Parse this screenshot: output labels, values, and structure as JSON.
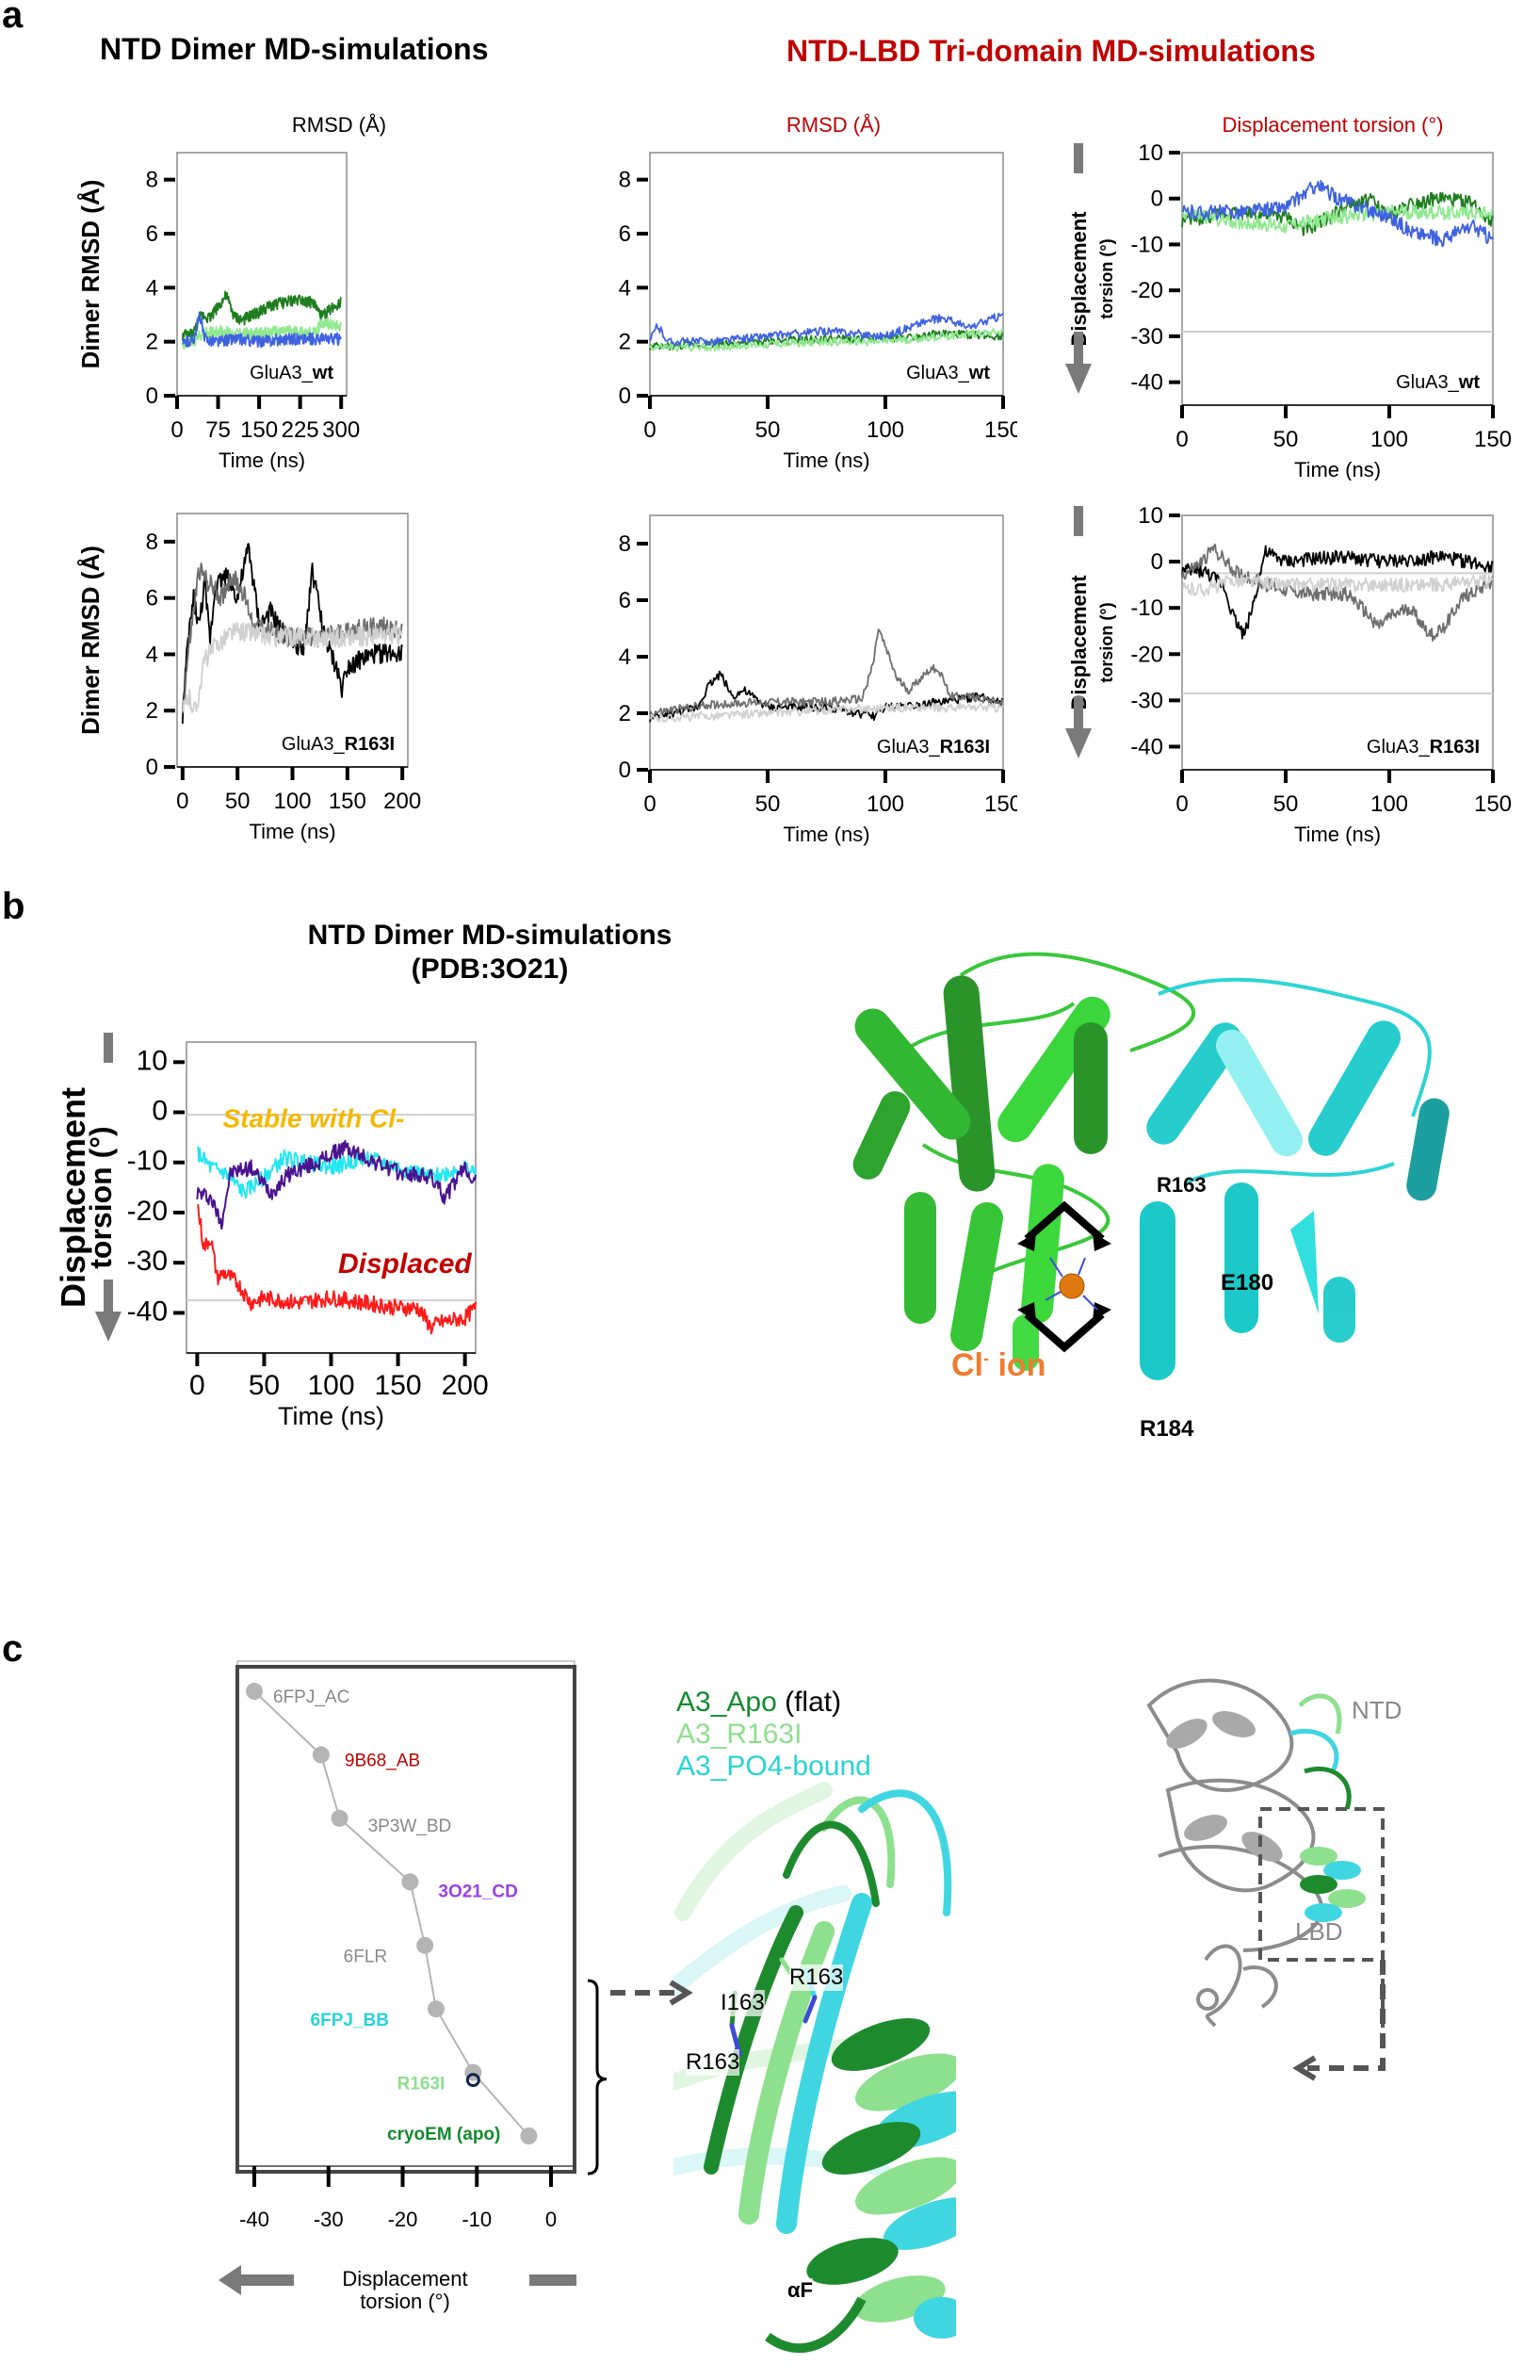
{
  "panel_a": {
    "letter": "a",
    "title_left": "NTD Dimer MD-simulations",
    "title_right": "NTD-LBD Tri-domain MD-simulations",
    "title_right_color": "#c00000",
    "col_titles": [
      "RMSD (Å)",
      "RMSD (Å)",
      "Displacement torsion (°)"
    ],
    "col_title_colors": [
      "#000000",
      "#c00000",
      "#c00000"
    ]
  },
  "panel_b": {
    "letter": "b",
    "title_line1": "NTD Dimer MD-simulations",
    "title_line2": "(PDB:3O21)",
    "stable_label": "Stable with Cl-",
    "displaced_label": "Displaced",
    "structure_labels": {
      "r163": "R163",
      "e180": "E180",
      "r184": "R184",
      "cl_ion": "Cl",
      "cl_sup": "-",
      "cl_suffix": " ion"
    }
  },
  "panel_c": {
    "letter": "c",
    "legend": [
      {
        "label": "A3_Apo",
        "suffix": " (flat)",
        "color": "#138a2e"
      },
      {
        "label": "A3_R163I",
        "suffix": "",
        "color": "#8de08d"
      },
      {
        "label": "A3_PO4-bound",
        "suffix": "",
        "color": "#27d3d3"
      }
    ],
    "structure_labels": {
      "i163": "I163",
      "r163_a": "R163",
      "r163_b": "R163",
      "alpha_f": "αF",
      "ntd": "NTD",
      "lbd": "LBD"
    },
    "axis_label_line1": "Displacement",
    "axis_label_line2": "torsion (°)"
  },
  "chart_data": [
    {
      "id": "a1",
      "type": "line",
      "title": "RMSD (Å)",
      "annotation": "GluA3_wt",
      "xlabel": "Time (ns)",
      "ylabel": "Dimer RMSD (Å)",
      "xlim": [
        0,
        310
      ],
      "ylim": [
        0,
        9
      ],
      "xticks": [
        0,
        75,
        150,
        225,
        300
      ],
      "yticks": [
        0,
        2,
        4,
        6,
        8
      ],
      "series": [
        {
          "name": "run1",
          "color": "#1e7d1e",
          "x": [
            10,
            30,
            45,
            60,
            75,
            90,
            105,
            120,
            150,
            180,
            210,
            225,
            250,
            265,
            280,
            300
          ],
          "y": [
            2.2,
            2.3,
            3.0,
            2.9,
            3.3,
            3.7,
            2.9,
            2.8,
            3.1,
            3.4,
            3.5,
            3.6,
            3.4,
            2.9,
            3.2,
            3.5
          ]
        },
        {
          "name": "run2",
          "color": "#8fe98f",
          "x": [
            10,
            30,
            45,
            75,
            105,
            150,
            200,
            250,
            265,
            300
          ],
          "y": [
            1.9,
            2.0,
            2.3,
            2.4,
            2.3,
            2.3,
            2.4,
            2.3,
            2.7,
            2.6
          ]
        },
        {
          "name": "run3",
          "color": "#3f62e0",
          "x": [
            10,
            30,
            42,
            50,
            75,
            105,
            150,
            200,
            250,
            300
          ],
          "y": [
            1.9,
            2.1,
            3.0,
            2.1,
            2.0,
            2.1,
            2.0,
            2.1,
            2.1,
            2.1
          ]
        }
      ]
    },
    {
      "id": "a2",
      "type": "line",
      "title": "RMSD (Å)",
      "annotation": "GluA3_wt",
      "xlabel": "Time (ns)",
      "ylabel": "",
      "xlim": [
        0,
        150
      ],
      "ylim": [
        0,
        9
      ],
      "xticks": [
        0,
        50,
        100,
        150
      ],
      "yticks": [
        0,
        2,
        4,
        6,
        8
      ],
      "series": [
        {
          "name": "run1",
          "color": "#1e7d1e",
          "x": [
            0,
            25,
            50,
            75,
            100,
            125,
            150
          ],
          "y": [
            1.8,
            1.9,
            2.0,
            2.1,
            2.1,
            2.3,
            2.2
          ]
        },
        {
          "name": "run2",
          "color": "#8fe98f",
          "x": [
            0,
            25,
            50,
            75,
            100,
            125,
            150
          ],
          "y": [
            1.8,
            1.8,
            1.9,
            2.0,
            2.0,
            2.2,
            2.4
          ]
        },
        {
          "name": "run3",
          "color": "#3f62e0",
          "x": [
            0,
            3,
            8,
            25,
            50,
            75,
            100,
            115,
            125,
            135,
            150
          ],
          "y": [
            2.0,
            2.6,
            2.0,
            2.0,
            2.2,
            2.4,
            2.2,
            2.7,
            2.9,
            2.5,
            3.0
          ]
        }
      ]
    },
    {
      "id": "a3",
      "type": "line",
      "title": "Displacement torsion (°)",
      "annotation": "GluA3_wt",
      "xlabel": "Time (ns)",
      "ylabel": "Displacement torsion (°)",
      "xlim": [
        0,
        150
      ],
      "ylim": [
        -45,
        10
      ],
      "xticks": [
        0,
        50,
        100,
        150
      ],
      "yticks": [
        -40,
        -30,
        -20,
        -10,
        0,
        10
      ],
      "reference_line": -29,
      "series": [
        {
          "name": "run1",
          "color": "#1e7d1e",
          "x": [
            0,
            25,
            50,
            60,
            75,
            90,
            100,
            110,
            125,
            140,
            150
          ],
          "y": [
            -5,
            -3,
            -4,
            -7,
            -3,
            0,
            -4,
            -1,
            0,
            -1,
            -5
          ]
        },
        {
          "name": "run2",
          "color": "#8fe98f",
          "x": [
            0,
            25,
            50,
            75,
            100,
            125,
            150
          ],
          "y": [
            -3,
            -5,
            -6,
            -4,
            -3,
            -3,
            -3
          ]
        },
        {
          "name": "run3",
          "color": "#3f62e0",
          "x": [
            0,
            25,
            50,
            65,
            75,
            100,
            110,
            125,
            140,
            150
          ],
          "y": [
            -3,
            -3,
            -2,
            3,
            0,
            -4,
            -7,
            -9,
            -6,
            -9
          ]
        }
      ]
    },
    {
      "id": "a4",
      "type": "line",
      "title": "",
      "annotation": "GluA3_R163I",
      "xlabel": "Time (ns)",
      "ylabel": "Dimer RMSD (Å)",
      "xlim": [
        -5,
        205
      ],
      "ylim": [
        0,
        9
      ],
      "xticks": [
        0,
        50,
        100,
        150,
        200
      ],
      "yticks": [
        0,
        2,
        4,
        6,
        8
      ],
      "series": [
        {
          "name": "run1",
          "color": "#000000",
          "x": [
            0,
            5,
            10,
            15,
            20,
            25,
            30,
            40,
            50,
            60,
            70,
            80,
            90,
            100,
            110,
            118,
            125,
            130,
            140,
            145,
            150,
            175,
            200
          ],
          "y": [
            1.8,
            4.5,
            6.0,
            5.0,
            6.5,
            4.5,
            6.5,
            6.8,
            6.0,
            7.8,
            5.0,
            5.5,
            4.8,
            4.5,
            4.0,
            7.0,
            5.5,
            4.5,
            3.5,
            2.8,
            3.6,
            4.0,
            4.1
          ]
        },
        {
          "name": "run2",
          "color": "#6e6e6e",
          "x": [
            0,
            5,
            15,
            25,
            35,
            45,
            55,
            65,
            80,
            100,
            125,
            150,
            175,
            200
          ],
          "y": [
            2.0,
            4.0,
            7.0,
            6.5,
            6.0,
            6.8,
            6.2,
            5.0,
            4.8,
            4.6,
            4.6,
            4.8,
            5.0,
            4.9
          ]
        },
        {
          "name": "run3",
          "color": "#d0d0d0",
          "x": [
            0,
            5,
            12,
            20,
            30,
            45,
            60,
            80,
            100,
            150,
            200
          ],
          "y": [
            1.9,
            2.5,
            2.0,
            3.8,
            4.3,
            4.8,
            4.8,
            4.6,
            4.6,
            4.6,
            4.7
          ]
        }
      ]
    },
    {
      "id": "a5",
      "type": "line",
      "title": "",
      "annotation": "GluA3_R163I",
      "xlabel": "Time (ns)",
      "ylabel": "",
      "xlim": [
        0,
        150
      ],
      "ylim": [
        0,
        9
      ],
      "xticks": [
        0,
        50,
        100,
        150
      ],
      "yticks": [
        0,
        2,
        4,
        6,
        8
      ],
      "series": [
        {
          "name": "run1",
          "color": "#000000",
          "x": [
            0,
            20,
            25,
            30,
            35,
            40,
            50,
            75,
            95,
            100,
            125,
            140,
            150
          ],
          "y": [
            1.8,
            2.2,
            3.0,
            3.4,
            2.6,
            2.8,
            2.2,
            2.2,
            1.9,
            2.2,
            2.4,
            2.6,
            2.4
          ]
        },
        {
          "name": "run2",
          "color": "#6e6e6e",
          "x": [
            0,
            25,
            50,
            75,
            90,
            95,
            97,
            105,
            110,
            118,
            122,
            128,
            135,
            150
          ],
          "y": [
            2.0,
            2.3,
            2.4,
            2.4,
            2.5,
            3.8,
            5.0,
            3.2,
            2.8,
            3.5,
            3.6,
            2.6,
            2.6,
            2.4
          ]
        },
        {
          "name": "run3",
          "color": "#d0d0d0",
          "x": [
            0,
            25,
            50,
            75,
            100,
            125,
            150
          ],
          "y": [
            1.8,
            1.9,
            2.0,
            2.1,
            2.2,
            2.2,
            2.2
          ]
        }
      ]
    },
    {
      "id": "a6",
      "type": "line",
      "title": "",
      "annotation": "GluA3_R163I",
      "xlabel": "Time (ns)",
      "ylabel": "Displacement torsion (°)",
      "xlim": [
        0,
        150
      ],
      "ylim": [
        -45,
        10
      ],
      "xticks": [
        0,
        50,
        100,
        150
      ],
      "yticks": [
        -40,
        -30,
        -20,
        -10,
        0,
        10
      ],
      "reference_lines": [
        -28.5,
        -2.5
      ],
      "series": [
        {
          "name": "run1",
          "color": "#000000",
          "x": [
            0,
            10,
            20,
            25,
            30,
            35,
            40,
            50,
            75,
            100,
            125,
            150
          ],
          "y": [
            -2,
            -2,
            -5,
            -12,
            -16,
            -8,
            2,
            0,
            1,
            0,
            1,
            -1
          ]
        },
        {
          "name": "run2",
          "color": "#6e6e6e",
          "x": [
            0,
            10,
            15,
            25,
            40,
            60,
            80,
            95,
            100,
            110,
            120,
            125,
            135,
            150
          ],
          "y": [
            -3,
            0,
            3,
            -2,
            -5,
            -7,
            -7,
            -14,
            -12,
            -10,
            -16,
            -15,
            -8,
            -4
          ]
        },
        {
          "name": "run3",
          "color": "#d0d0d0",
          "x": [
            0,
            12,
            25,
            50,
            75,
            100,
            125,
            150
          ],
          "y": [
            -6,
            -6,
            -4,
            -5,
            -5,
            -5,
            -5,
            -4
          ]
        }
      ]
    },
    {
      "id": "b",
      "type": "line",
      "title": "NTD Dimer MD-simulations (PDB:3O21)",
      "xlabel": "Time (ns)",
      "ylabel": "Displacement torsion (°)",
      "xlim": [
        -8,
        208
      ],
      "ylim": [
        -48,
        14
      ],
      "xticks": [
        0,
        50,
        100,
        150,
        200
      ],
      "yticks": [
        -40,
        -30,
        -20,
        -10,
        0,
        10
      ],
      "reference_lines": [
        -0.5,
        -37.5
      ],
      "annotations": [
        {
          "text": "Stable with Cl-",
          "color": "#f5b800"
        },
        {
          "text": "Displaced",
          "color": "#c00000"
        }
      ],
      "series": [
        {
          "name": "cyan run",
          "color": "#22e6f0",
          "x": [
            0,
            10,
            20,
            35,
            50,
            65,
            80,
            100,
            125,
            150,
            175,
            200,
            208
          ],
          "y": [
            -8,
            -11,
            -12,
            -16,
            -13,
            -9,
            -10,
            -11,
            -9,
            -11,
            -13,
            -11,
            -12
          ]
        },
        {
          "name": "purple run",
          "color": "#4b138f",
          "x": [
            0,
            10,
            18,
            25,
            40,
            55,
            70,
            90,
            110,
            125,
            150,
            175,
            185,
            200,
            208
          ],
          "y": [
            -16,
            -17,
            -22,
            -12,
            -11,
            -16,
            -12,
            -10,
            -7,
            -9,
            -12,
            -13,
            -17,
            -11,
            -14
          ]
        },
        {
          "name": "red run",
          "color": "#ff1a1a",
          "x": [
            0,
            5,
            10,
            15,
            20,
            30,
            40,
            50,
            75,
            100,
            125,
            150,
            165,
            175,
            180,
            200,
            208
          ],
          "y": [
            -18,
            -27,
            -25,
            -33,
            -32,
            -34,
            -38,
            -37,
            -38,
            -37,
            -38,
            -39,
            -39,
            -43,
            -42,
            -41,
            -39
          ]
        }
      ]
    },
    {
      "id": "c",
      "type": "scatter",
      "xlabel": "Displacement torsion (°)",
      "xlim": [
        -42,
        2
      ],
      "xticks": [
        -40,
        -30,
        -20,
        -10,
        0
      ],
      "points": [
        {
          "label": "6FPJ_AC",
          "x": -40,
          "color": "#888888"
        },
        {
          "label": "9B68_AB",
          "x": -31,
          "color": "#c00000"
        },
        {
          "label": "3P3W_BD",
          "x": -28.5,
          "color": "#888888"
        },
        {
          "label": "3O21_CD",
          "x": -19,
          "color": "#9b3fe8"
        },
        {
          "label": "6FLR",
          "x": -17,
          "color": "#888888"
        },
        {
          "label": "6FPJ_BB",
          "x": -15.5,
          "color": "#27d3d3"
        },
        {
          "label": "R163I",
          "x": -10.5,
          "color": "#8de08d",
          "open_marker_color": "#12254f"
        },
        {
          "label": "cryoEM (apo)",
          "x": -3,
          "color": "#138a2e"
        }
      ]
    }
  ]
}
